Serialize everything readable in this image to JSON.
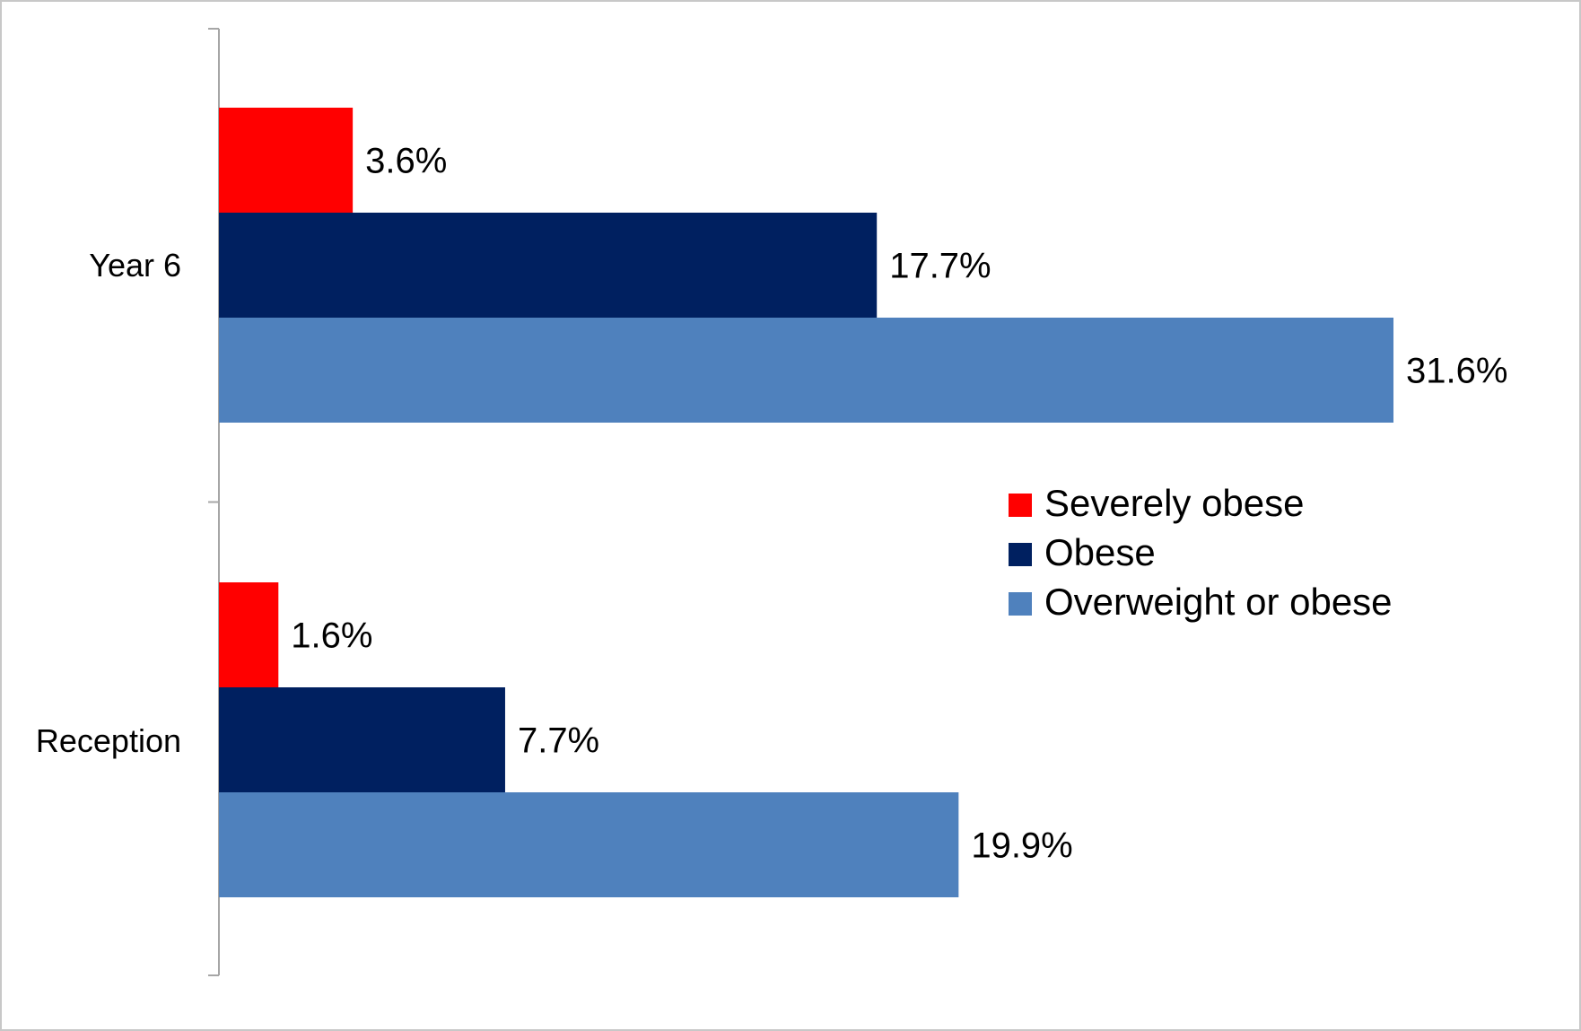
{
  "chart_data": {
    "type": "bar",
    "orientation": "horizontal",
    "categories": [
      "Year 6",
      "Reception"
    ],
    "series": [
      {
        "name": "Severely obese",
        "color": "#FF0000",
        "values": [
          3.6,
          1.6
        ],
        "labels": [
          "3.6%",
          "1.6%"
        ]
      },
      {
        "name": "Obese",
        "color": "#002060",
        "values": [
          17.7,
          7.7
        ],
        "labels": [
          "17.7%",
          "7.7%"
        ]
      },
      {
        "name": "Overweight or obese",
        "color": "#4F81BD",
        "values": [
          31.6,
          19.9
        ],
        "labels": [
          "31.6%",
          "19.9%"
        ]
      }
    ],
    "xlim": [
      0,
      36
    ],
    "grid": false,
    "value_axis_visible": false,
    "legend_position": "right"
  }
}
